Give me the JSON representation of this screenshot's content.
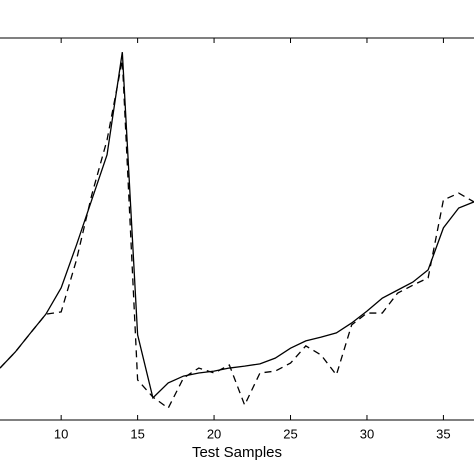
{
  "chart_data": {
    "type": "line",
    "xlabel": "Test Samples",
    "x": [
      6,
      7,
      8,
      9,
      10,
      11,
      12,
      13,
      14,
      15,
      16,
      17,
      18,
      19,
      20,
      21,
      22,
      23,
      24,
      25,
      26,
      27,
      28,
      29,
      30,
      31,
      32,
      33,
      34,
      35,
      36,
      37
    ],
    "series": [
      {
        "color": "#000000",
        "linestyle": "solid",
        "values": [
          13.6,
          17.8,
          22.8,
          27.7,
          34.6,
          45.8,
          57.6,
          69.4,
          96.3,
          22.3,
          5.8,
          9.7,
          11.5,
          12.3,
          12.8,
          13.6,
          14.1,
          14.7,
          16.2,
          18.8,
          20.7,
          21.7,
          22.8,
          25.4,
          28.5,
          31.9,
          34.0,
          36.1,
          39.3,
          50.3,
          55.5,
          57.1
        ]
      },
      {
        "color": "#000000",
        "linestyle": "dashed",
        "values": [
          13.6,
          17.8,
          22.8,
          27.7,
          28.3,
          41.9,
          58.9,
          73.3,
          94.2,
          10.5,
          6.0,
          3.1,
          11.0,
          13.6,
          12.3,
          14.4,
          3.9,
          12.3,
          12.8,
          14.9,
          19.4,
          17.0,
          11.8,
          24.9,
          28.0,
          28.0,
          33.2,
          35.3,
          37.2,
          57.6,
          59.4,
          57.1
        ]
      }
    ],
    "xlim": [
      6,
      37
    ],
    "ylim": [
      0,
      100
    ],
    "xticks": [
      10,
      15,
      20,
      25,
      30,
      35
    ]
  }
}
